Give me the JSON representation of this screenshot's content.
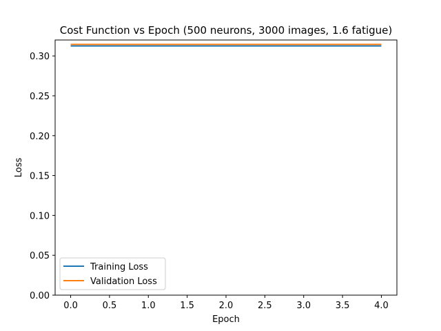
{
  "chart_data": {
    "type": "line",
    "title": "Cost Function vs Epoch (500 neurons, 3000 images, 1.6 fatigue)",
    "xlabel": "Epoch",
    "ylabel": "Loss",
    "x": [
      0,
      1,
      2,
      3,
      4
    ],
    "xlim": [
      -0.2,
      4.2
    ],
    "ylim": [
      0,
      0.32
    ],
    "xticks": [
      "0.0",
      "0.5",
      "1.0",
      "1.5",
      "2.0",
      "2.5",
      "3.0",
      "3.5",
      "4.0"
    ],
    "yticks": [
      "0.00",
      "0.05",
      "0.10",
      "0.15",
      "0.20",
      "0.25",
      "0.30"
    ],
    "grid": false,
    "legend_position": "lower-left",
    "series": [
      {
        "name": "Training Loss",
        "values": [
          0.3125,
          0.3125,
          0.3125,
          0.3125,
          0.3125
        ],
        "color": "#1f77b4"
      },
      {
        "name": "Validation Loss",
        "values": [
          0.3145,
          0.3145,
          0.3145,
          0.3145,
          0.3145
        ],
        "color": "#ff7f0e"
      }
    ]
  }
}
